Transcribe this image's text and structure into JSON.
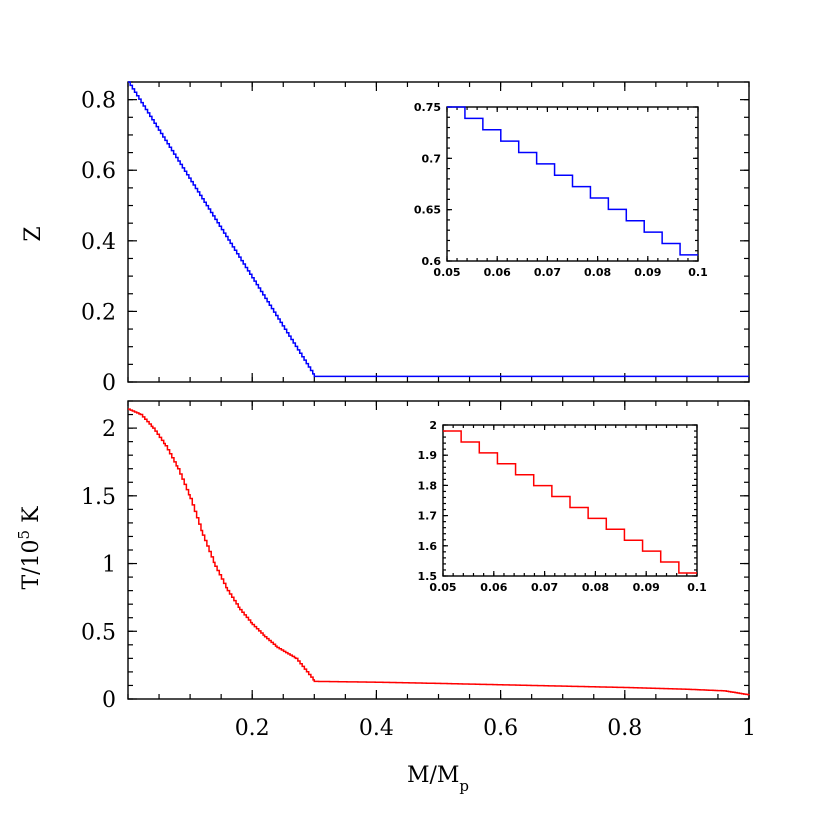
{
  "chart_data": [
    {
      "id": "top-main",
      "type": "line",
      "ylabel": "Z",
      "xlim": [
        0.0,
        1.0
      ],
      "ylim": [
        0.0,
        0.85
      ],
      "yticks": [
        0,
        0.2,
        0.4,
        0.6,
        0.8
      ],
      "ytick_labels": [
        "0",
        "0.2",
        "0.4",
        "0.6",
        "0.8"
      ],
      "series": [
        {
          "color": "#0000ff",
          "points": [
            [
              0.0,
              0.85
            ],
            [
              0.3,
              0.016
            ],
            [
              1.0,
              0.016
            ]
          ],
          "stepped": true
        }
      ]
    },
    {
      "id": "top-inset",
      "type": "line",
      "xlim": [
        0.05,
        0.1
      ],
      "ylim": [
        0.6,
        0.75
      ],
      "xticks": [
        0.05,
        0.06,
        0.07,
        0.08,
        0.09,
        0.1
      ],
      "xtick_labels": [
        "0.05",
        "0.06",
        "0.07",
        "0.08",
        "0.09",
        "0.1"
      ],
      "yticks": [
        0.6,
        0.65,
        0.7,
        0.75
      ],
      "ytick_labels": [
        "0.6",
        "0.65",
        "0.7",
        "0.75"
      ],
      "series": [
        {
          "color": "#0000ff",
          "points": [
            [
              0.05,
              0.75
            ],
            [
              0.1,
              0.606
            ]
          ],
          "stepped": true,
          "steps": 14
        }
      ]
    },
    {
      "id": "bottom-main",
      "type": "line",
      "xlabel": "M/M",
      "xlabel_sub": "p",
      "ylabel": "T/10",
      "ylabel_sup": "5",
      "ylabel_suffix": " K",
      "xlim": [
        0.0,
        1.0
      ],
      "ylim": [
        0.0,
        2.2
      ],
      "xticks": [
        0.2,
        0.4,
        0.6,
        0.8,
        1.0
      ],
      "xtick_labels": [
        "0.2",
        "0.4",
        "0.6",
        "0.8",
        "1"
      ],
      "yticks": [
        0,
        0.5,
        1.0,
        1.5,
        2.0
      ],
      "ytick_labels": [
        "0",
        "0.5",
        "1",
        "1.5",
        "2"
      ],
      "series": [
        {
          "color": "#ff0000",
          "points": [
            [
              0.0,
              2.14
            ],
            [
              0.02,
              2.1
            ],
            [
              0.04,
              2.0
            ],
            [
              0.06,
              1.87
            ],
            [
              0.08,
              1.7
            ],
            [
              0.1,
              1.48
            ],
            [
              0.12,
              1.21
            ],
            [
              0.14,
              0.98
            ],
            [
              0.16,
              0.8
            ],
            [
              0.18,
              0.66
            ],
            [
              0.2,
              0.55
            ],
            [
              0.22,
              0.46
            ],
            [
              0.24,
              0.38
            ],
            [
              0.27,
              0.3
            ],
            [
              0.3,
              0.13
            ],
            [
              0.4,
              0.124
            ],
            [
              0.5,
              0.115
            ],
            [
              0.6,
              0.105
            ],
            [
              0.7,
              0.095
            ],
            [
              0.8,
              0.085
            ],
            [
              0.9,
              0.072
            ],
            [
              0.96,
              0.06
            ],
            [
              1.0,
              0.03
            ]
          ],
          "stepped": true
        }
      ]
    },
    {
      "id": "bottom-inset",
      "type": "line",
      "xlim": [
        0.05,
        0.1
      ],
      "ylim": [
        1.5,
        2.0
      ],
      "xticks": [
        0.05,
        0.06,
        0.07,
        0.08,
        0.09,
        0.1
      ],
      "xtick_labels": [
        "0.05",
        "0.06",
        "0.07",
        "0.08",
        "0.09",
        "0.1"
      ],
      "yticks": [
        1.5,
        1.6,
        1.7,
        1.8,
        1.9,
        2.0
      ],
      "ytick_labels": [
        "1.5",
        "1.6",
        "1.7",
        "1.8",
        "1.9",
        "2"
      ],
      "series": [
        {
          "color": "#ff0000",
          "points": [
            [
              0.05,
              1.98
            ],
            [
              0.1,
              1.51
            ]
          ],
          "stepped": true,
          "steps": 14
        }
      ]
    }
  ]
}
